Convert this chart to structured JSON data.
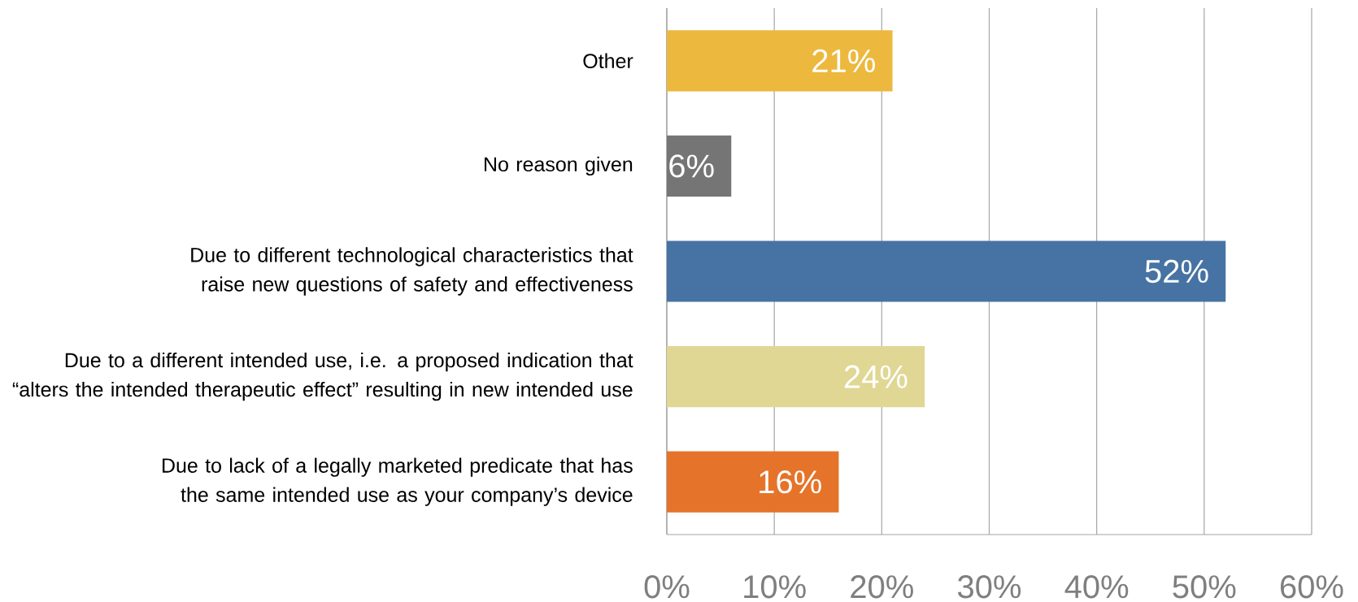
{
  "chart_data": {
    "type": "bar",
    "orientation": "horizontal",
    "categories": [
      "Other",
      "No reason given",
      "Due to different technological characteristics that raise new questions of safety and effectiveness",
      "Due to a different intended use, i.e. a proposed indication that “alters the intended therapeutic effect” resulting in new intended use",
      "Due to lack of a legally marketed predicate that has the same intended use as your company’s device"
    ],
    "values": [
      21,
      6,
      52,
      24,
      16
    ],
    "colors": [
      "#ECB93E",
      "#757575",
      "#4673A3",
      "#E0D795",
      "#E5742A"
    ],
    "value_labels": [
      "21%",
      "6%",
      "52%",
      "24%",
      "16%"
    ],
    "xlim": [
      0,
      60
    ],
    "xticks": [
      {
        "value": 0,
        "label": "0%"
      },
      {
        "value": 10,
        "label": "10%"
      },
      {
        "value": 20,
        "label": "20%"
      },
      {
        "value": 30,
        "label": "30%"
      },
      {
        "value": 40,
        "label": "40%"
      },
      {
        "value": 50,
        "label": "50%"
      },
      {
        "value": 60,
        "label": "60%"
      }
    ],
    "grid": "x"
  }
}
